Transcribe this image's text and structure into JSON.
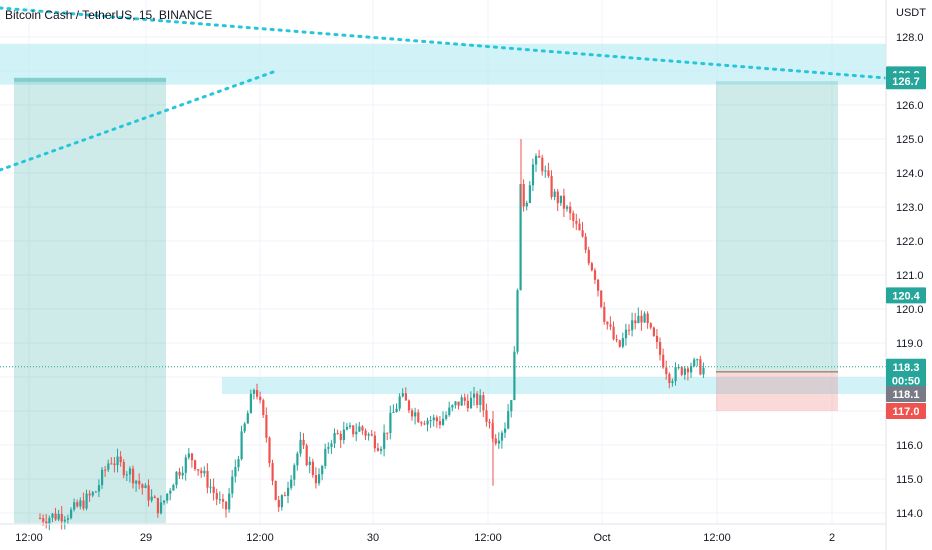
{
  "header": {
    "title": "Bitcoin Cash / TetherUS, 15, BINANCE",
    "currency": "USDT"
  },
  "colors": {
    "up": "#26a69a",
    "down": "#ef5350",
    "zone": "#b2ebf2",
    "trendline": "#26c6da",
    "target_box": "#26a69a",
    "stop_box": "#ef5350",
    "grid": "#f0f3fa"
  },
  "chart_data": {
    "type": "candlestick",
    "title": "Bitcoin Cash / TetherUS, 15, BINANCE",
    "ylabel": "USDT",
    "ylim": [
      113.7,
      128.6
    ],
    "y_ticks": [
      "128.0",
      "127.0",
      "126.0",
      "125.0",
      "124.0",
      "123.0",
      "122.0",
      "121.0",
      "120.0",
      "119.0",
      "118.0",
      "117.0",
      "116.0",
      "115.0",
      "114.0"
    ],
    "x_ticks": [
      "12:00",
      "29",
      "12:00",
      "30",
      "12:00",
      "Oct",
      "12:00",
      "2"
    ],
    "price_tags": [
      {
        "label": "126.9",
        "value": 126.9,
        "color": "#26a69a"
      },
      {
        "label": "126.7",
        "value": 126.7,
        "color": "#26a69a"
      },
      {
        "label": "120.4",
        "value": 120.4,
        "color": "#26a69a"
      },
      {
        "label": "118.3",
        "value": 118.3,
        "color": "#26a69a"
      },
      {
        "label": "00:50",
        "value": 117.9,
        "color": "#26a69a"
      },
      {
        "label": "118.1",
        "value": 117.5,
        "color": "#787b86"
      },
      {
        "label": "117.0",
        "value": 117.0,
        "color": "#ef5350"
      }
    ],
    "last_price": 118.3,
    "resistance_zone": [
      126.6,
      127.8
    ],
    "support_zone": [
      117.5,
      118.0
    ],
    "trend_candles_approx": [
      {
        "t": "28 12:00",
        "close": 113.8
      },
      {
        "t": "29 00:00",
        "close": 115.8
      },
      {
        "t": "29 12:00",
        "close": 117.8
      },
      {
        "t": "30 00:00",
        "close": 116.4
      },
      {
        "t": "30 12:00",
        "close": 117.6
      },
      {
        "t": "30 13:00",
        "close": 125.0
      },
      {
        "t": "Oct 00:00",
        "close": 119.5
      },
      {
        "t": "Oct 09:00",
        "close": 118.3
      }
    ]
  }
}
